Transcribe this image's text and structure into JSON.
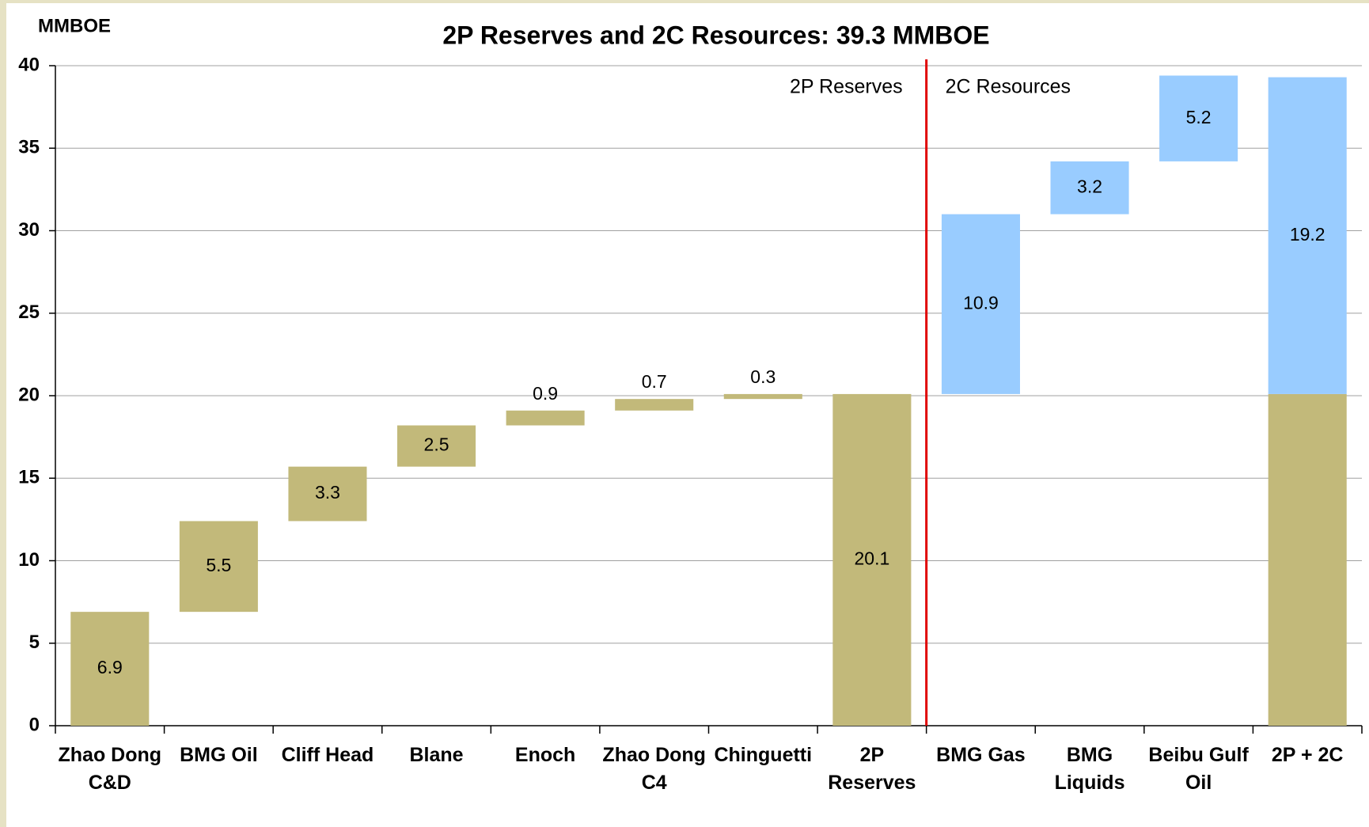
{
  "chart_data": {
    "type": "waterfall",
    "title": "2P Reserves and 2C Resources: 39.3 MMBOE",
    "y_label": "MMBOE",
    "categories": [
      "Zhao Dong C&D",
      "BMG Oil",
      "Cliff Head",
      "Blane",
      "Enoch",
      "Zhao Dong C4",
      "Chinguetti",
      "2P Reserves",
      "BMG Gas",
      "BMG Liquids",
      "Beibu Gulf Oil",
      "2P + 2C"
    ],
    "kinds": [
      "step",
      "step",
      "step",
      "step",
      "step",
      "step",
      "step",
      "total",
      "step",
      "step",
      "step",
      "total"
    ],
    "series": [
      {
        "name": "2P Reserves",
        "color": "#c2b97a",
        "values": [
          6.9,
          5.5,
          3.3,
          2.5,
          0.9,
          0.7,
          0.3,
          20.1,
          null,
          null,
          null,
          20.1
        ]
      },
      {
        "name": "2C Resources",
        "color": "#99ccff",
        "values": [
          null,
          null,
          null,
          null,
          null,
          null,
          null,
          null,
          10.9,
          3.2,
          5.2,
          19.2
        ]
      }
    ],
    "ylim": [
      0,
      40
    ],
    "yticks": [
      0,
      5,
      10,
      15,
      20,
      25,
      30,
      35,
      40
    ],
    "grid": true
  }
}
